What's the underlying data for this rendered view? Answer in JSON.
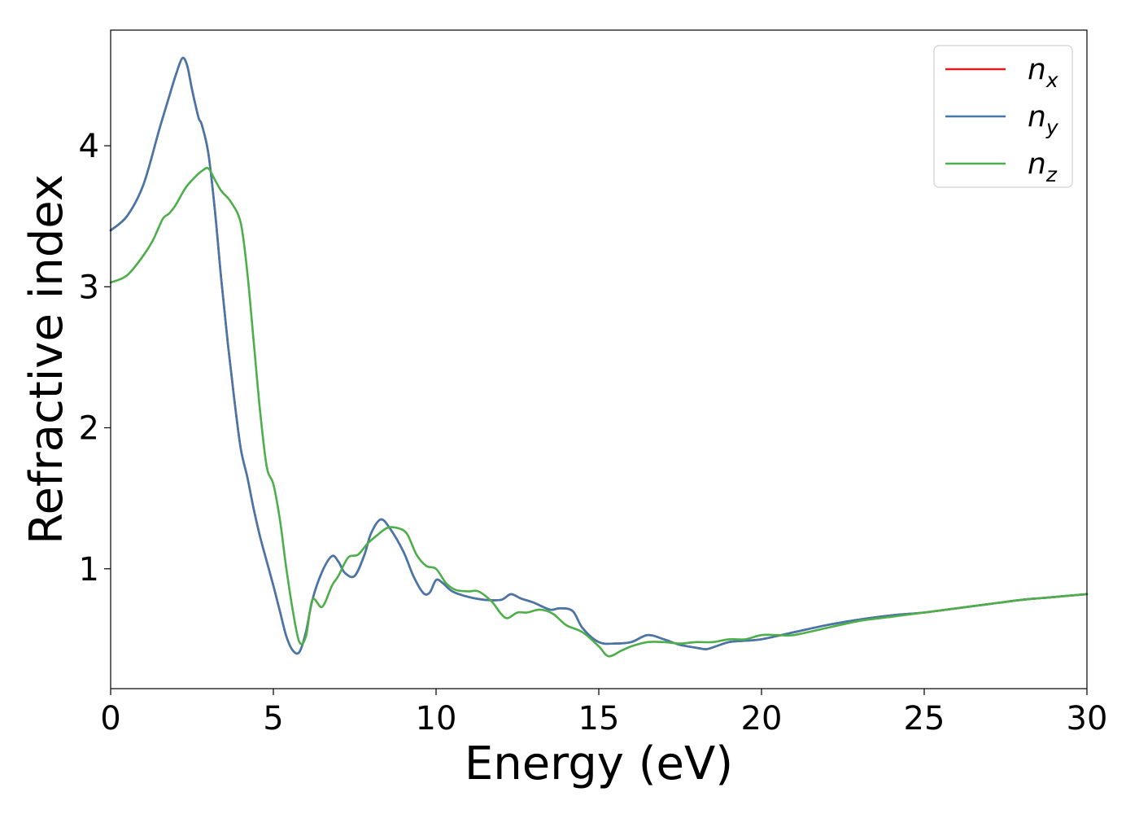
{
  "chart_data": {
    "type": "line",
    "title": "",
    "xlabel": "Energy (eV)",
    "ylabel": "Refractive index",
    "xlim": [
      0,
      30
    ],
    "ylim": [
      0.15,
      4.82
    ],
    "x_ticks": [
      0,
      5,
      10,
      15,
      20,
      25,
      30
    ],
    "y_ticks": [
      1,
      2,
      3,
      4
    ],
    "grid": false,
    "legend_position": "top-right",
    "series": [
      {
        "name": "n",
        "subscript": "x",
        "color": "#e41a1c",
        "x": [
          0,
          0.5,
          1.0,
          1.5,
          1.8,
          2.0,
          2.2,
          2.35,
          2.5,
          2.7,
          2.8,
          3.0,
          3.2,
          3.4,
          3.6,
          3.8,
          4.0,
          4.2,
          4.4,
          4.6,
          4.8,
          5.0,
          5.2,
          5.4,
          5.6,
          5.8,
          6.0,
          6.2,
          6.5,
          6.8,
          7.0,
          7.2,
          7.5,
          7.8,
          8.0,
          8.3,
          8.6,
          9.0,
          9.3,
          9.6,
          9.8,
          10.0,
          10.2,
          10.5,
          11.0,
          11.5,
          12.0,
          12.3,
          12.6,
          13.0,
          13.5,
          13.8,
          14.2,
          14.5,
          15.0,
          15.5,
          16.0,
          16.5,
          17.0,
          17.5,
          18.0,
          18.3,
          18.6,
          19.0,
          19.5,
          20.0,
          21.0,
          22.0,
          23.0,
          24.0,
          25.0,
          26.0,
          27.0,
          28.0,
          29.0,
          30.0
        ],
        "y": [
          3.4,
          3.5,
          3.72,
          4.12,
          4.35,
          4.5,
          4.62,
          4.57,
          4.4,
          4.2,
          4.15,
          3.95,
          3.55,
          3.05,
          2.6,
          2.2,
          1.85,
          1.65,
          1.42,
          1.22,
          1.05,
          0.88,
          0.7,
          0.52,
          0.42,
          0.41,
          0.55,
          0.78,
          0.98,
          1.09,
          1.05,
          0.97,
          0.95,
          1.1,
          1.25,
          1.35,
          1.28,
          1.12,
          0.95,
          0.83,
          0.83,
          0.92,
          0.9,
          0.84,
          0.8,
          0.78,
          0.78,
          0.82,
          0.79,
          0.76,
          0.71,
          0.72,
          0.7,
          0.58,
          0.48,
          0.47,
          0.48,
          0.53,
          0.5,
          0.46,
          0.44,
          0.43,
          0.45,
          0.48,
          0.49,
          0.5,
          0.55,
          0.6,
          0.64,
          0.67,
          0.69,
          0.72,
          0.75,
          0.78,
          0.8,
          0.82
        ]
      },
      {
        "name": "n",
        "subscript": "y",
        "color": "#4477aa",
        "x": [
          0,
          0.5,
          1.0,
          1.5,
          1.8,
          2.0,
          2.2,
          2.35,
          2.5,
          2.7,
          2.8,
          3.0,
          3.2,
          3.4,
          3.6,
          3.8,
          4.0,
          4.2,
          4.4,
          4.6,
          4.8,
          5.0,
          5.2,
          5.4,
          5.6,
          5.8,
          6.0,
          6.2,
          6.5,
          6.8,
          7.0,
          7.2,
          7.5,
          7.8,
          8.0,
          8.3,
          8.6,
          9.0,
          9.3,
          9.6,
          9.8,
          10.0,
          10.2,
          10.5,
          11.0,
          11.5,
          12.0,
          12.3,
          12.6,
          13.0,
          13.5,
          13.8,
          14.2,
          14.5,
          15.0,
          15.5,
          16.0,
          16.5,
          17.0,
          17.5,
          18.0,
          18.3,
          18.6,
          19.0,
          19.5,
          20.0,
          21.0,
          22.0,
          23.0,
          24.0,
          25.0,
          26.0,
          27.0,
          28.0,
          29.0,
          30.0
        ],
        "y": [
          3.4,
          3.5,
          3.72,
          4.12,
          4.35,
          4.5,
          4.62,
          4.57,
          4.4,
          4.2,
          4.15,
          3.95,
          3.55,
          3.05,
          2.6,
          2.2,
          1.85,
          1.65,
          1.42,
          1.22,
          1.05,
          0.88,
          0.7,
          0.52,
          0.42,
          0.41,
          0.55,
          0.78,
          0.98,
          1.09,
          1.05,
          0.97,
          0.95,
          1.1,
          1.25,
          1.35,
          1.28,
          1.12,
          0.95,
          0.83,
          0.83,
          0.92,
          0.9,
          0.84,
          0.8,
          0.78,
          0.78,
          0.82,
          0.79,
          0.76,
          0.71,
          0.72,
          0.7,
          0.58,
          0.48,
          0.47,
          0.48,
          0.53,
          0.5,
          0.46,
          0.44,
          0.43,
          0.45,
          0.48,
          0.49,
          0.5,
          0.55,
          0.6,
          0.64,
          0.67,
          0.69,
          0.72,
          0.75,
          0.78,
          0.8,
          0.82
        ]
      },
      {
        "name": "n",
        "subscript": "z",
        "color": "#4daf4a",
        "x": [
          0,
          0.5,
          1.0,
          1.3,
          1.6,
          1.8,
          2.0,
          2.3,
          2.6,
          2.8,
          3.0,
          3.2,
          3.4,
          3.7,
          4.0,
          4.2,
          4.4,
          4.6,
          4.8,
          5.0,
          5.2,
          5.4,
          5.6,
          5.8,
          6.0,
          6.2,
          6.5,
          6.8,
          7.0,
          7.3,
          7.6,
          7.9,
          8.2,
          8.5,
          8.8,
          9.1,
          9.4,
          9.7,
          10.0,
          10.3,
          10.6,
          11.0,
          11.3,
          11.7,
          12.0,
          12.2,
          12.5,
          12.8,
          13.2,
          13.6,
          14.0,
          14.5,
          15.0,
          15.3,
          15.7,
          16.0,
          16.5,
          17.0,
          17.5,
          18.0,
          18.5,
          19.0,
          19.5,
          20.0,
          20.5,
          21.0,
          22.0,
          23.0,
          24.0,
          25.0,
          26.0,
          27.0,
          28.0,
          29.0,
          30.0
        ],
        "y": [
          3.03,
          3.08,
          3.22,
          3.33,
          3.48,
          3.52,
          3.58,
          3.7,
          3.78,
          3.82,
          3.84,
          3.76,
          3.68,
          3.6,
          3.45,
          3.1,
          2.6,
          2.1,
          1.72,
          1.6,
          1.35,
          1.0,
          0.7,
          0.48,
          0.52,
          0.78,
          0.73,
          0.88,
          0.95,
          1.08,
          1.1,
          1.18,
          1.24,
          1.29,
          1.29,
          1.25,
          1.1,
          1.02,
          1.0,
          0.9,
          0.85,
          0.84,
          0.84,
          0.77,
          0.68,
          0.65,
          0.69,
          0.69,
          0.71,
          0.68,
          0.6,
          0.55,
          0.45,
          0.38,
          0.42,
          0.45,
          0.48,
          0.48,
          0.47,
          0.48,
          0.48,
          0.5,
          0.5,
          0.53,
          0.53,
          0.53,
          0.58,
          0.63,
          0.66,
          0.69,
          0.72,
          0.75,
          0.78,
          0.8,
          0.82
        ]
      }
    ]
  }
}
